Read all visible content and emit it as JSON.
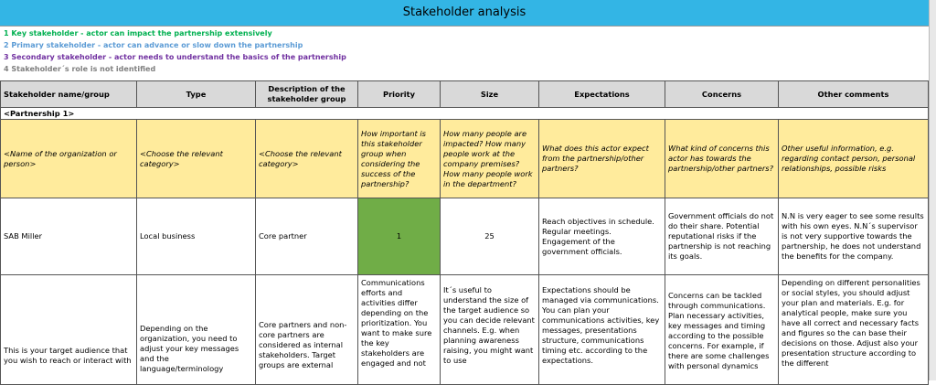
{
  "title": "Stakeholder analysis",
  "legend": [
    {
      "text": "1 Key stakeholder - actor can impact the partnership extensively",
      "color": "#00b050"
    },
    {
      "text": "2 Primary stakeholder - actor can advance or slow down the partnership",
      "color": "#5b9bd5"
    },
    {
      "text": "3 Secondary stakeholder - actor needs to understand the basics of the partnership",
      "color": "#7030a0"
    },
    {
      "text": "4 Stakeholder´s role is not identified",
      "color": "#7f7f7f"
    }
  ],
  "table": {
    "headers": [
      "Stakeholder name/group",
      "Type",
      "Description of the stakeholder group",
      "Priority",
      "Size",
      "Expectations",
      "Concerns",
      "Other comments"
    ],
    "section": "<Partnership 1>",
    "rows": [
      [
        "<Name of the organization or person>",
        "<Choose the relevant category>",
        "<Choose the relevant category>",
        "How important is this stakeholder group when considering the success of the partnership?",
        "How many people are impacted? How many people work at the company premises? How many people work in the department?",
        "What does this actor expect from the partnership/other partners?",
        "What kind of concerns this actor has towards the partnership/other partners?",
        "Other useful information, e.g. regarding contact person, personal relationships, possible risks"
      ],
      [
        "SAB Miller",
        "Local business",
        "Core partner",
        1,
        25,
        "Reach objectives in schedule. Regular meetings. Engagement of the government officials.",
        "Government officials do not do their share. Potential reputational risks if the partnership is not reaching its goals.",
        "N.N is very eager to see some results with his own eyes. N.N´s supervisor is not very supportive towards the partnership, he does not understand the benefits for the company."
      ],
      [
        "This is your target audience that you wish to reach or interact with",
        "Depending on the organization, you need to adjust your key messages and the language/terminology",
        "Core partners and non-core partners are considered as internal stakeholders. Target groups are external",
        "Communications efforts and activities differ depending on the prioritization. You want to make sure the key stakeholders are engaged and not",
        "It´s useful to understand the size of the target audience so you can decide relevant channels. E.g. when planning awareness raising, you might want to use",
        "Expectations should be managed via communications. You can plan your communications activities, key messages, presentations structure, communications timing etc. according to the expectations.",
        "Concerns can be tackled through communications. Plan necessary activities, key messages and timing according to the possible concerns. For example, if there are some challenges with personal dynamics",
        "Depending on different personalities or social styles, you should adjust your plan and materials. E.g. for analytical people, make sure you have all correct and necessary facts and figures so the can base their decisions on those. Adjust also your presentation structure according to the different"
      ]
    ]
  }
}
